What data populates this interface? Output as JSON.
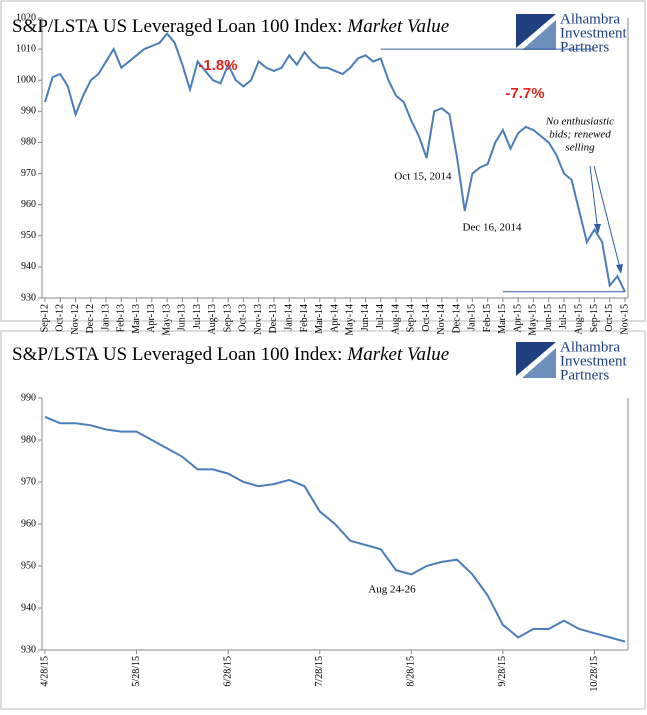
{
  "chart_data": [
    {
      "type": "line",
      "title": "S&P/LSTA US Leveraged Loan 100 Index:",
      "title_emphasis": "Market Value",
      "logo": [
        "Alhambra",
        "Investment",
        "Partners"
      ],
      "categories": [
        "Sep-12",
        null,
        "Oct-12",
        null,
        "Nov-12",
        null,
        "Dec-12",
        null,
        "Jan-13",
        null,
        "Feb-13",
        null,
        "Mar-13",
        null,
        "Apr-13",
        null,
        "May-13",
        null,
        "Jun-13",
        null,
        "Jul-13",
        null,
        "Aug-13",
        null,
        "Sep-13",
        null,
        "Oct-13",
        null,
        "Nov-13",
        null,
        "Dec-13",
        null,
        "Jan-14",
        null,
        "Feb-14",
        null,
        "Mar-14",
        null,
        "Apr-14",
        null,
        "May-14",
        null,
        "Jun-14",
        null,
        "Jul-14",
        null,
        "Aug-14",
        null,
        "Sep-14",
        null,
        "Oct-14",
        null,
        "Nov-14",
        null,
        "Dec-14",
        null,
        "Jan-15",
        null,
        "Feb-15",
        null,
        "Mar-15",
        null,
        "Apr-15",
        null,
        "May-15",
        null,
        "Jun-15",
        null,
        "Jul-15",
        null,
        "Aug-15",
        null,
        "Sep-15",
        null,
        "Oct-15",
        null,
        "Nov-15"
      ],
      "series": [
        {
          "name": "Market Value",
          "color": "#4a7ebb",
          "values": [
            993,
            1001,
            1002,
            998,
            989,
            995,
            1000,
            1002,
            1006,
            1010,
            1004,
            1006,
            1008,
            1010,
            1011,
            1012,
            1015,
            1012,
            1005,
            997,
            1006,
            1003,
            1000,
            999,
            1005,
            1000,
            998,
            1000,
            1006,
            1004,
            1003,
            1004,
            1008,
            1005,
            1009,
            1006,
            1004,
            1004,
            1003,
            1002,
            1004,
            1007,
            1008,
            1006,
            1007,
            1000,
            995,
            993,
            987,
            982,
            975,
            990,
            991,
            989,
            975,
            958,
            970,
            972,
            973,
            980,
            984,
            978,
            983,
            985,
            984,
            982,
            980,
            976,
            970,
            968,
            958,
            948,
            952,
            948,
            934,
            937,
            932
          ]
        }
      ],
      "ylim": [
        930,
        1020
      ],
      "yticks": [
        930,
        940,
        950,
        960,
        970,
        980,
        990,
        1000,
        1010,
        1020
      ],
      "reference_lines": [
        {
          "value": 1010,
          "from": "Jul-14",
          "to": "Sep-15"
        },
        {
          "value": 932,
          "from": "Mar-15",
          "to": "Nov-15"
        }
      ],
      "annotations": [
        {
          "text": "-1.8%"
        },
        {
          "text": "-7.7%"
        },
        {
          "text": "Oct 15, 2014"
        },
        {
          "text": "Dec 16, 2014"
        },
        {
          "lines": [
            "No enthusiastic",
            "bids; renewed",
            "selling"
          ]
        }
      ]
    },
    {
      "type": "line",
      "title": "S&P/LSTA US Leveraged Loan 100 Index:",
      "title_emphasis": "Market Value",
      "logo": [
        "Alhambra",
        "Investment",
        "Partners"
      ],
      "categories": [
        "4/28/15",
        null,
        null,
        null,
        null,
        null,
        "5/28/15",
        null,
        null,
        null,
        null,
        null,
        "6/28/15",
        null,
        null,
        null,
        null,
        null,
        "7/28/15",
        null,
        null,
        null,
        null,
        null,
        "8/28/15",
        null,
        null,
        null,
        null,
        null,
        "9/28/15",
        null,
        null,
        null,
        null,
        null,
        "10/28/15",
        null,
        null
      ],
      "series": [
        {
          "name": "Market Value",
          "color": "#4a7ebb",
          "values": [
            985.5,
            984,
            984,
            983.5,
            982.5,
            982,
            982,
            980,
            978,
            976,
            973,
            973,
            972,
            970,
            969,
            969.5,
            970.5,
            969,
            963,
            960,
            956,
            955,
            954,
            949,
            948,
            950,
            951,
            951.5,
            948,
            943,
            936,
            933,
            935,
            935,
            937,
            935,
            934,
            933,
            932
          ]
        }
      ],
      "ylim": [
        930,
        990
      ],
      "yticks": [
        930,
        940,
        950,
        960,
        970,
        980,
        990
      ],
      "annotations": [
        {
          "text": "Aug 24-26"
        }
      ]
    }
  ]
}
